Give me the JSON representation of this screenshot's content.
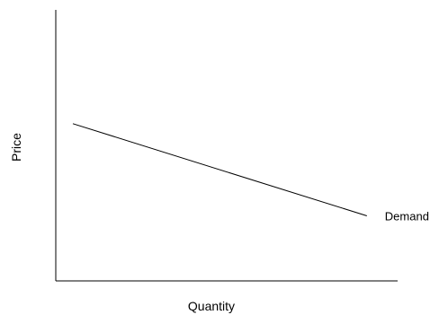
{
  "chart_data": {
    "type": "line",
    "xlabel": "Quantity",
    "ylabel": "Price",
    "xlim": [
      0,
      10
    ],
    "ylim": [
      0,
      10
    ],
    "grid": false,
    "series": [
      {
        "name": "Demand",
        "x": [
          0.5,
          9.1
        ],
        "y": [
          5.8,
          2.4
        ]
      }
    ]
  }
}
